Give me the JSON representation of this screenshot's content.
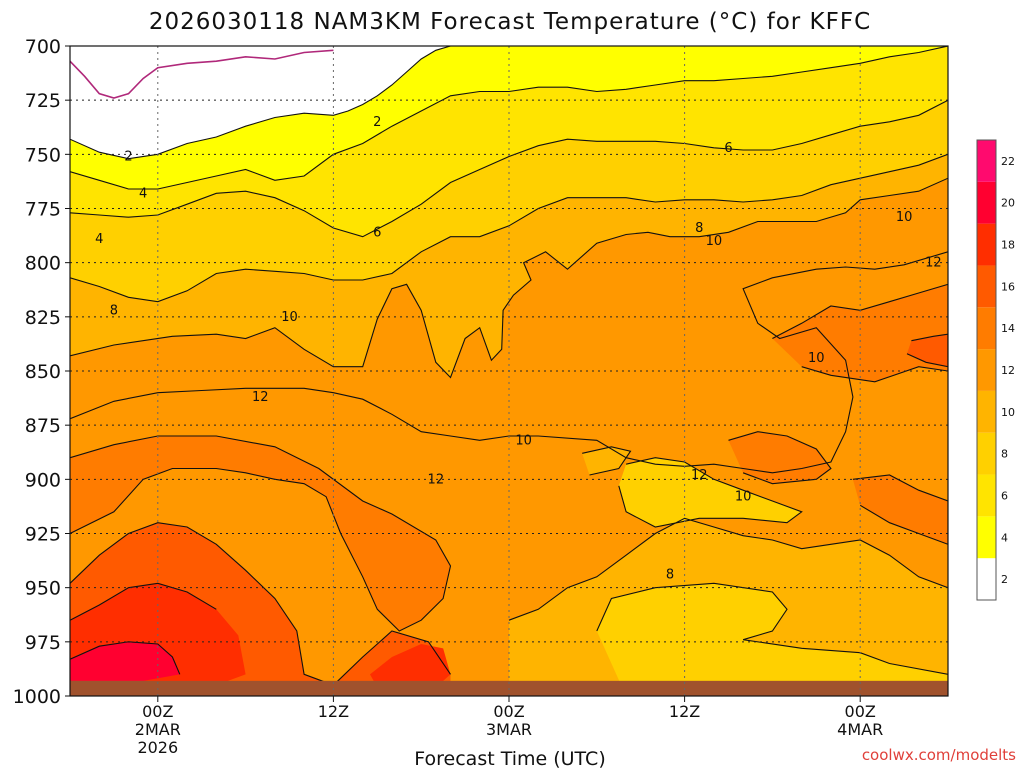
{
  "chart_data": {
    "type": "heatmap",
    "title": "2026030118 NAM3KM Forecast Temperature (°C) for KFFC",
    "xlabel": "Forecast Time (UTC)",
    "ylabel": "",
    "x_ticks": [
      {
        "hours": 6,
        "lines": [
          "00Z",
          "2MAR",
          "2026"
        ]
      },
      {
        "hours": 18,
        "lines": [
          "12Z"
        ]
      },
      {
        "hours": 30,
        "lines": [
          "00Z",
          "3MAR"
        ]
      },
      {
        "hours": 42,
        "lines": [
          "12Z"
        ]
      },
      {
        "hours": 54,
        "lines": [
          "00Z",
          "4MAR"
        ]
      }
    ],
    "xlim_hours": [
      0,
      60
    ],
    "y_ticks": [
      700,
      725,
      750,
      775,
      800,
      825,
      850,
      875,
      900,
      925,
      950,
      975,
      1000
    ],
    "ylim_hPa": [
      700,
      1000
    ],
    "colorbar": {
      "levels": [
        2,
        4,
        6,
        8,
        10,
        12,
        14,
        16,
        18,
        20,
        22
      ],
      "colors": [
        "#ffffff",
        "#ffff00",
        "#ffe400",
        "#ffd000",
        "#ffb400",
        "#ff9800",
        "#ff7c00",
        "#ff5a00",
        "#ff2e00",
        "#ff0030",
        "#ff0a6e"
      ]
    },
    "contour_labels": [
      2,
      2,
      4,
      4,
      6,
      6,
      8,
      8,
      10,
      10,
      10,
      12,
      12,
      12,
      10,
      10,
      12,
      10,
      8,
      8
    ],
    "grid": true,
    "credit": "coolwx.com/modelts"
  }
}
